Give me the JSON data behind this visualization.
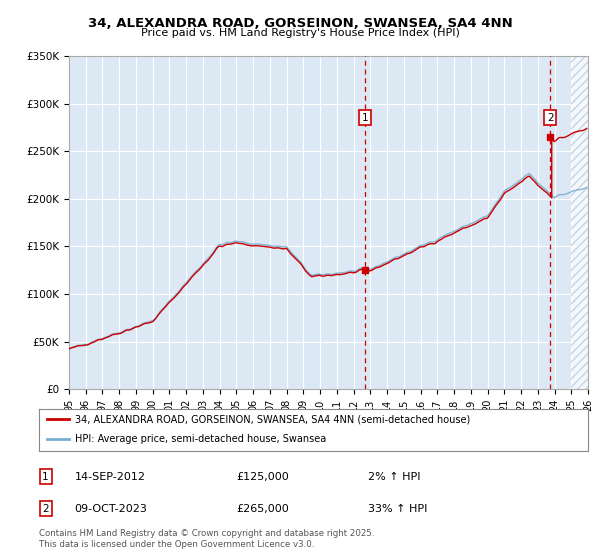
{
  "title": "34, ALEXANDRA ROAD, GORSEINON, SWANSEA, SA4 4NN",
  "subtitle": "Price paid vs. HM Land Registry's House Price Index (HPI)",
  "fig_bg": "#ffffff",
  "plot_bg": "#dce9f5",
  "red_color": "#cc0000",
  "blue_color": "#7aadcf",
  "grid_color": "#ffffff",
  "vline_color": "#cc0000",
  "legend_red": "34, ALEXANDRA ROAD, GORSEINON, SWANSEA, SA4 4NN (semi-detached house)",
  "legend_blue": "HPI: Average price, semi-detached house, Swansea",
  "footer": "Contains HM Land Registry data © Crown copyright and database right 2025.\nThis data is licensed under the Open Government Licence v3.0.",
  "sale1_year": 2012.7,
  "sale1_price": 125000,
  "sale1_label": "1",
  "sale1_date": "14-SEP-2012",
  "sale1_pct": "2% ↑ HPI",
  "sale2_year": 2023.75,
  "sale2_price": 265000,
  "sale2_label": "2",
  "sale2_date": "09-OCT-2023",
  "sale2_pct": "33% ↑ HPI",
  "xmin": 1995,
  "xmax": 2026,
  "ymin": 0,
  "ymax": 350000
}
